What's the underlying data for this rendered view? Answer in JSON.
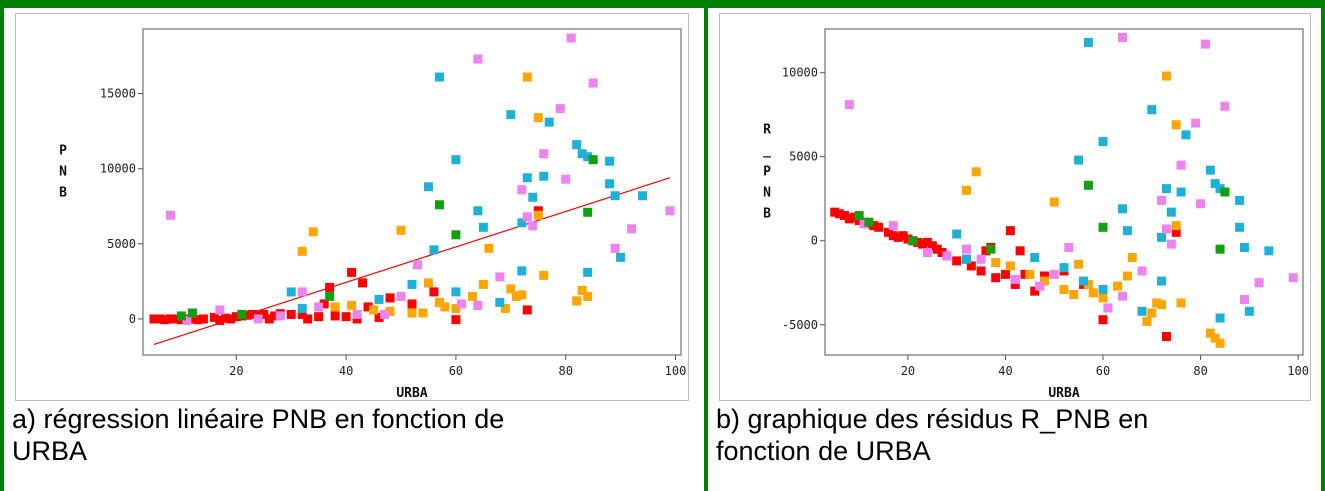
{
  "colors": {
    "frame": "#008000",
    "red": "#ff0000",
    "orange": "#ffa500",
    "cyan": "#1fb0d8",
    "magenta": "#ee82ee",
    "green": "#10a010",
    "fit_line": "#ff0000"
  },
  "captions": {
    "a": "a) régression linéaire PNB en fonction de\nURBA",
    "b": "b) graphique des résidus R_PNB en\nfonction de URBA"
  },
  "chart_data": [
    {
      "type": "scatter",
      "title": "",
      "xlabel": "URBA",
      "ylabel": "PNB",
      "xlim": [
        3,
        101
      ],
      "ylim": [
        -2400,
        19300
      ],
      "xticks": [
        20,
        40,
        60,
        80,
        100
      ],
      "yticks": [
        0,
        5000,
        10000,
        15000
      ],
      "fit_line": {
        "x": [
          5,
          99
        ],
        "y": [
          -1700,
          9400
        ]
      },
      "series": [
        {
          "color": "red",
          "points": [
            [
              5,
              0
            ],
            [
              6,
              0
            ],
            [
              7,
              -50
            ],
            [
              8,
              0
            ],
            [
              9,
              0
            ],
            [
              10,
              -50
            ],
            [
              11,
              0
            ],
            [
              12,
              0
            ],
            [
              13,
              -50
            ],
            [
              14,
              0
            ],
            [
              16,
              100
            ],
            [
              17,
              -100
            ],
            [
              18,
              50
            ],
            [
              19,
              0
            ],
            [
              20,
              150
            ],
            [
              21,
              200
            ],
            [
              22,
              250
            ],
            [
              23,
              300
            ],
            [
              24,
              200
            ],
            [
              25,
              300
            ],
            [
              26,
              0
            ],
            [
              27,
              200
            ],
            [
              28,
              350
            ],
            [
              30,
              300
            ],
            [
              32,
              300
            ],
            [
              33,
              0
            ],
            [
              35,
              150
            ],
            [
              36,
              1000
            ],
            [
              37,
              2100
            ],
            [
              38,
              200
            ],
            [
              40,
              150
            ],
            [
              41,
              3100
            ],
            [
              42,
              0
            ],
            [
              43,
              2400
            ],
            [
              44,
              800
            ],
            [
              46,
              100
            ],
            [
              48,
              1400
            ],
            [
              52,
              1000
            ],
            [
              56,
              1800
            ],
            [
              60,
              -50
            ],
            [
              73,
              600
            ],
            [
              75,
              7200
            ]
          ]
        },
        {
          "color": "orange",
          "points": [
            [
              32,
              4500
            ],
            [
              34,
              5800
            ],
            [
              38,
              800
            ],
            [
              41,
              900
            ],
            [
              45,
              600
            ],
            [
              48,
              500
            ],
            [
              50,
              5900
            ],
            [
              52,
              400
            ],
            [
              54,
              400
            ],
            [
              55,
              2400
            ],
            [
              57,
              1100
            ],
            [
              58,
              800
            ],
            [
              60,
              700
            ],
            [
              63,
              1500
            ],
            [
              65,
              2300
            ],
            [
              66,
              4700
            ],
            [
              69,
              700
            ],
            [
              70,
              2000
            ],
            [
              71,
              1500
            ],
            [
              72,
              1600
            ],
            [
              73,
              16100
            ],
            [
              75,
              6900
            ],
            [
              75,
              13400
            ],
            [
              76,
              2900
            ],
            [
              82,
              1200
            ],
            [
              83,
              1900
            ],
            [
              84,
              1500
            ]
          ]
        },
        {
          "color": "cyan",
          "points": [
            [
              30,
              1800
            ],
            [
              32,
              700
            ],
            [
              46,
              1300
            ],
            [
              52,
              2300
            ],
            [
              55,
              8800
            ],
            [
              56,
              4600
            ],
            [
              57,
              16100
            ],
            [
              60,
              10600
            ],
            [
              60,
              1800
            ],
            [
              64,
              7200
            ],
            [
              65,
              6100
            ],
            [
              68,
              1100
            ],
            [
              70,
              13600
            ],
            [
              72,
              3200
            ],
            [
              72,
              6400
            ],
            [
              73,
              9400
            ],
            [
              74,
              8100
            ],
            [
              76,
              9500
            ],
            [
              77,
              13100
            ],
            [
              82,
              11600
            ],
            [
              83,
              11000
            ],
            [
              84,
              10800
            ],
            [
              84,
              3100
            ],
            [
              88,
              9000
            ],
            [
              88,
              10500
            ],
            [
              89,
              8200
            ],
            [
              90,
              4100
            ],
            [
              94,
              8200
            ]
          ]
        },
        {
          "color": "magenta",
          "points": [
            [
              8,
              6900
            ],
            [
              11,
              -100
            ],
            [
              17,
              600
            ],
            [
              24,
              0
            ],
            [
              28,
              200
            ],
            [
              32,
              1800
            ],
            [
              35,
              800
            ],
            [
              42,
              300
            ],
            [
              47,
              300
            ],
            [
              50,
              1500
            ],
            [
              53,
              3600
            ],
            [
              61,
              1000
            ],
            [
              64,
              900
            ],
            [
              64,
              17300
            ],
            [
              68,
              2800
            ],
            [
              72,
              8600
            ],
            [
              73,
              6800
            ],
            [
              74,
              6200
            ],
            [
              76,
              11000
            ],
            [
              79,
              14000
            ],
            [
              80,
              9300
            ],
            [
              81,
              18700
            ],
            [
              85,
              15700
            ],
            [
              89,
              4700
            ],
            [
              92,
              6000
            ],
            [
              99,
              7200
            ]
          ]
        },
        {
          "color": "green",
          "points": [
            [
              10,
              200
            ],
            [
              12,
              400
            ],
            [
              21,
              300
            ],
            [
              37,
              1500
            ],
            [
              57,
              7600
            ],
            [
              60,
              5600
            ],
            [
              84,
              7100
            ],
            [
              85,
              10600
            ]
          ]
        }
      ]
    },
    {
      "type": "scatter",
      "title": "",
      "xlabel": "URBA",
      "ylabel": "R_PNB",
      "xlim": [
        3,
        101
      ],
      "ylim": [
        -6800,
        12600
      ],
      "xticks": [
        20,
        40,
        60,
        80,
        100
      ],
      "yticks": [
        -5000,
        0,
        5000,
        10000
      ],
      "series": [
        {
          "color": "red",
          "points": [
            [
              5,
              1700
            ],
            [
              6,
              1600
            ],
            [
              7,
              1500
            ],
            [
              8,
              1300
            ],
            [
              9,
              1400
            ],
            [
              10,
              1200
            ],
            [
              11,
              1100
            ],
            [
              12,
              1000
            ],
            [
              13,
              900
            ],
            [
              14,
              800
            ],
            [
              16,
              500
            ],
            [
              17,
              300
            ],
            [
              18,
              200
            ],
            [
              19,
              300
            ],
            [
              20,
              100
            ],
            [
              21,
              0
            ],
            [
              22,
              -100
            ],
            [
              23,
              -200
            ],
            [
              24,
              -100
            ],
            [
              25,
              -300
            ],
            [
              26,
              -500
            ],
            [
              27,
              -700
            ],
            [
              28,
              -900
            ],
            [
              30,
              -1200
            ],
            [
              32,
              -1100
            ],
            [
              33,
              -1500
            ],
            [
              35,
              -1800
            ],
            [
              36,
              -600
            ],
            [
              37,
              -400
            ],
            [
              38,
              -2200
            ],
            [
              40,
              -2000
            ],
            [
              41,
              600
            ],
            [
              42,
              -2600
            ],
            [
              43,
              -600
            ],
            [
              44,
              -2000
            ],
            [
              46,
              -3000
            ],
            [
              48,
              -2100
            ],
            [
              52,
              -1800
            ],
            [
              56,
              -2600
            ],
            [
              60,
              -4700
            ],
            [
              73,
              -5700
            ],
            [
              75,
              500
            ]
          ]
        },
        {
          "color": "orange",
          "points": [
            [
              32,
              3000
            ],
            [
              34,
              4100
            ],
            [
              38,
              -1300
            ],
            [
              41,
              -1500
            ],
            [
              45,
              -2000
            ],
            [
              48,
              -2400
            ],
            [
              50,
              2300
            ],
            [
              52,
              -2900
            ],
            [
              54,
              -3200
            ],
            [
              55,
              -1400
            ],
            [
              57,
              -2600
            ],
            [
              58,
              -3100
            ],
            [
              60,
              -3400
            ],
            [
              63,
              -2700
            ],
            [
              65,
              -2100
            ],
            [
              66,
              -1000
            ],
            [
              69,
              -4800
            ],
            [
              70,
              -4300
            ],
            [
              71,
              -3700
            ],
            [
              72,
              -3800
            ],
            [
              73,
              9800
            ],
            [
              75,
              900
            ],
            [
              75,
              6900
            ],
            [
              76,
              -3700
            ],
            [
              82,
              -5500
            ],
            [
              83,
              -5800
            ],
            [
              84,
              -6100
            ]
          ]
        },
        {
          "color": "cyan",
          "points": [
            [
              30,
              400
            ],
            [
              32,
              -1100
            ],
            [
              46,
              -1000
            ],
            [
              52,
              -1600
            ],
            [
              55,
              4800
            ],
            [
              56,
              -2400
            ],
            [
              57,
              11800
            ],
            [
              60,
              5900
            ],
            [
              60,
              -2900
            ],
            [
              64,
              1900
            ],
            [
              65,
              600
            ],
            [
              68,
              -4200
            ],
            [
              70,
              7800
            ],
            [
              72,
              -2400
            ],
            [
              72,
              200
            ],
            [
              73,
              3100
            ],
            [
              74,
              1700
            ],
            [
              76,
              2900
            ],
            [
              77,
              6300
            ],
            [
              82,
              4200
            ],
            [
              83,
              3400
            ],
            [
              84,
              3100
            ],
            [
              84,
              -4600
            ],
            [
              88,
              2400
            ],
            [
              88,
              800
            ],
            [
              89,
              -400
            ],
            [
              90,
              -4200
            ],
            [
              94,
              -600
            ]
          ]
        },
        {
          "color": "magenta",
          "points": [
            [
              8,
              8100
            ],
            [
              11,
              1000
            ],
            [
              17,
              900
            ],
            [
              24,
              -700
            ],
            [
              28,
              -900
            ],
            [
              32,
              -500
            ],
            [
              35,
              -1100
            ],
            [
              42,
              -2300
            ],
            [
              47,
              -2700
            ],
            [
              50,
              -2000
            ],
            [
              53,
              -400
            ],
            [
              61,
              -4000
            ],
            [
              64,
              -3300
            ],
            [
              64,
              12100
            ],
            [
              68,
              -1800
            ],
            [
              72,
              2400
            ],
            [
              73,
              700
            ],
            [
              74,
              -200
            ],
            [
              76,
              4500
            ],
            [
              79,
              7000
            ],
            [
              80,
              2200
            ],
            [
              81,
              11700
            ],
            [
              85,
              8000
            ],
            [
              89,
              -3500
            ],
            [
              92,
              -2500
            ],
            [
              99,
              -2200
            ]
          ]
        },
        {
          "color": "green",
          "points": [
            [
              10,
              1500
            ],
            [
              12,
              1100
            ],
            [
              21,
              0
            ],
            [
              37,
              -500
            ],
            [
              57,
              3300
            ],
            [
              60,
              800
            ],
            [
              84,
              -500
            ],
            [
              85,
              2900
            ]
          ]
        }
      ]
    }
  ]
}
